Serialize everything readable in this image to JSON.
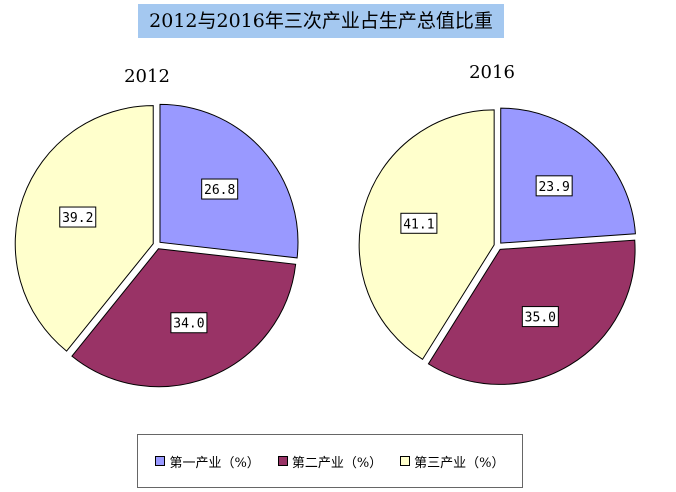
{
  "chart_data": {
    "type": "pie",
    "title": "2012与2016年三次产业占生产总值比重",
    "categories": [
      "第一产业（%）",
      "第二产业（%）",
      "第三产业（%）"
    ],
    "colors": [
      "#9999ff",
      "#993366",
      "#ffffcc"
    ],
    "pies": [
      {
        "name": "2012",
        "values": [
          26.8,
          34.0,
          39.2
        ],
        "labels": [
          "26.8",
          "34.0",
          "39.2"
        ]
      },
      {
        "name": "2016",
        "values": [
          23.9,
          35.0,
          41.1
        ],
        "labels": [
          "23.9",
          "35.0",
          "41.1"
        ]
      }
    ],
    "legend_position": "bottom"
  }
}
